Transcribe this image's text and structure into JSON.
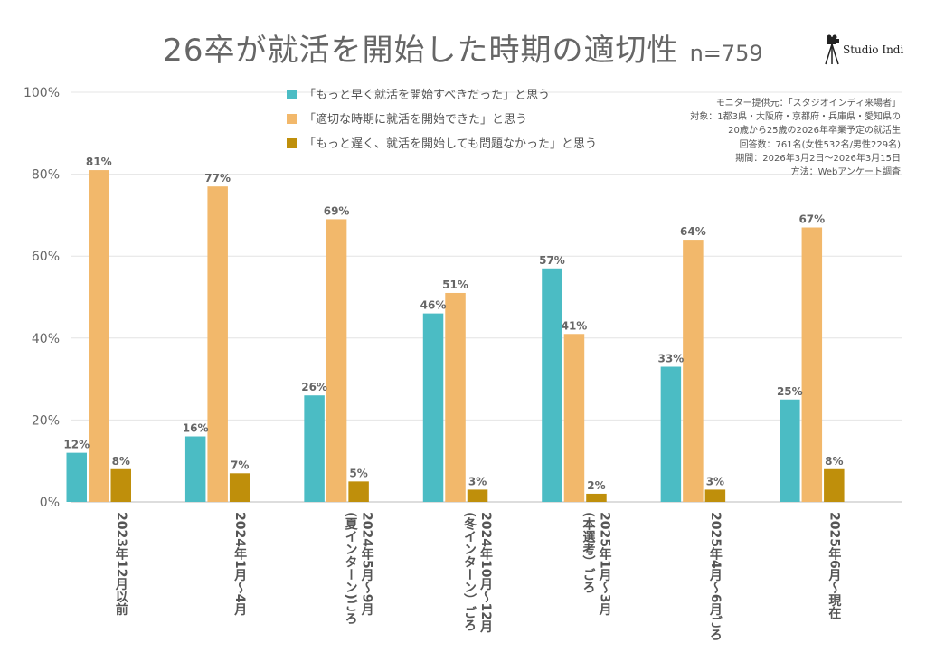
{
  "title": "26卒が就活を開始した時期の適切性",
  "subtitle": "n=759",
  "logo": {
    "text": "Studio Indi",
    "icon": "camera-tripod-icon"
  },
  "survey_info": [
    "モニター提供元：「スタジオインディ来場者」",
    "対象：1都3県・大阪府・京都府・兵庫県・愛知県の",
    "20歳から25歳の2026年卒業予定の就活生",
    "回答数：761名(女性532名/男性229名)",
    "期間：2026年3月2日〜2026年3月15日",
    "方法：Webアンケート調査"
  ],
  "chart_data": {
    "type": "bar",
    "title": "26卒が就活を開始した時期の適切性",
    "ylim": [
      0,
      100
    ],
    "yticks": [
      "0%",
      "20%",
      "40%",
      "60%",
      "80%",
      "100%"
    ],
    "grid": true,
    "legend_position": "top",
    "categories": [
      [
        "2023年12月以前"
      ],
      [
        "2024年1月〜4月"
      ],
      [
        "2024年5月〜9月",
        "(夏インターン)ごろ"
      ],
      [
        "2024年10月〜12月",
        "(冬インターン）ごろ"
      ],
      [
        "2025年1月〜3月",
        "(本選考）ごろ"
      ],
      [
        "2025年4月〜6月ごろ"
      ],
      [
        "2025年6月〜現在"
      ]
    ],
    "series": [
      {
        "name": "「もっと早く就活を開始すべきだった」と思う",
        "color": "#4bbcc4",
        "values": [
          12,
          16,
          26,
          46,
          57,
          33,
          25
        ]
      },
      {
        "name": "「適切な時期に就活を開始できた」と思う",
        "color": "#f2b86b",
        "values": [
          81,
          77,
          69,
          51,
          41,
          64,
          67
        ]
      },
      {
        "name": "「もっと遅く、就活を開始しても問題なかった」と思う",
        "color": "#bf8f0b",
        "values": [
          8,
          7,
          5,
          3,
          2,
          3,
          8
        ]
      }
    ]
  }
}
